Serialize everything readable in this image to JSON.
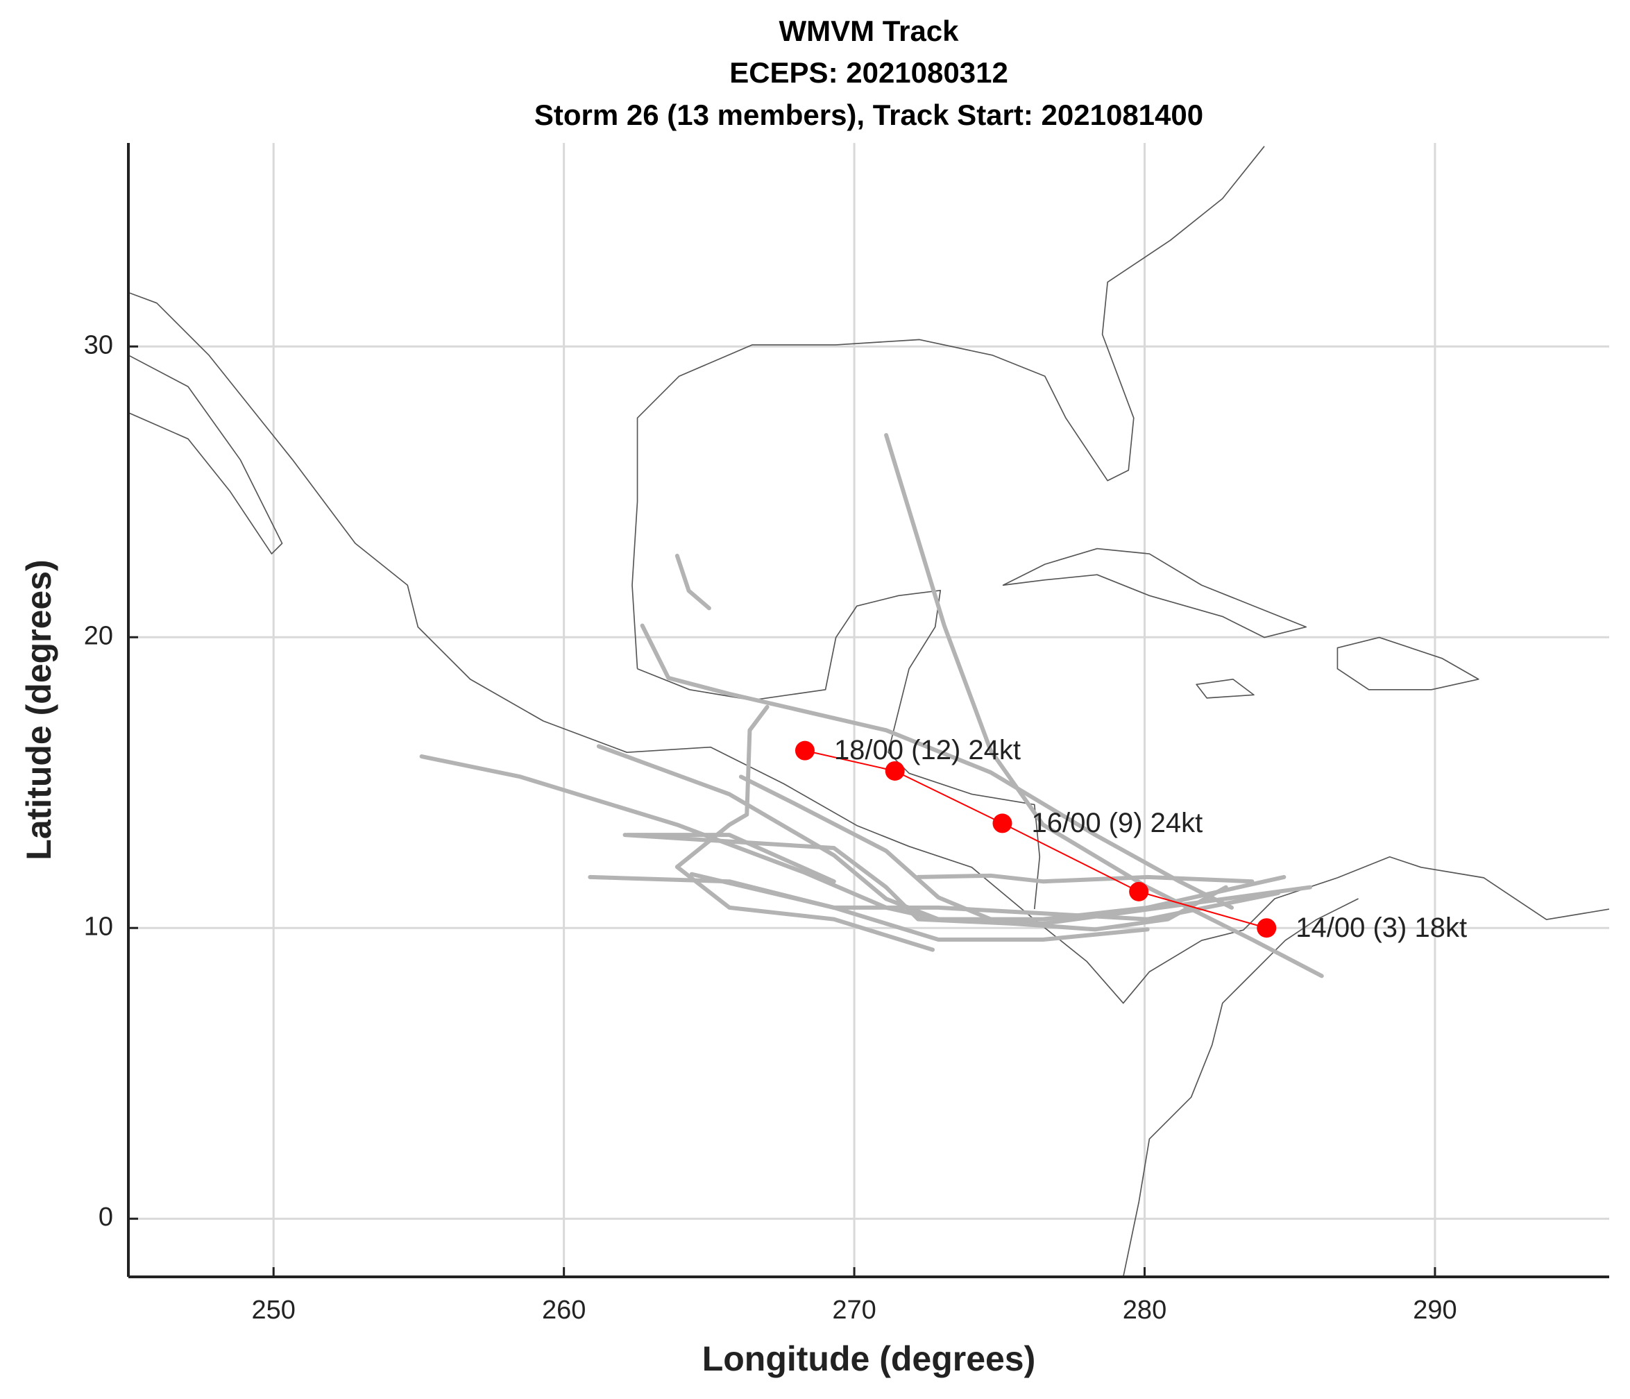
{
  "chart_data": {
    "type": "line",
    "title": [
      "WMVM Track",
      "ECEPS: 2021080312",
      "Storm 26 (13 members), Track Start: 2021081400"
    ],
    "x_label": "Longitude (degrees)",
    "y_label": "Latitude (degrees)",
    "xlim": [
      245,
      296
    ],
    "ylim": [
      -2,
      37
    ],
    "xticks": [
      250,
      260,
      270,
      280,
      290
    ],
    "yticks": [
      0,
      10,
      20,
      30
    ],
    "grid": true,
    "series": [
      {
        "color": "#b3b3b3",
        "x": [
          271.1,
          273.1,
          274.7,
          276.5,
          280.1,
          283.7,
          286.1
        ],
        "values": [
          26.95,
          20.4,
          16.1,
          13.55,
          11.4,
          9.6,
          8.35
        ]
      },
      {
        "color": "#b3b3b3",
        "x": [
          262.7,
          263.6,
          265.7,
          271.1,
          274.7,
          278.3,
          281.2,
          283.0
        ],
        "values": [
          20.4,
          18.6,
          18.05,
          16.8,
          15.35,
          13.2,
          11.6,
          10.7
        ]
      },
      {
        "color": "#b3b3b3",
        "x": [
          261.2,
          265.7,
          269.3,
          271.1,
          272.9,
          276.5,
          280.1,
          284.8
        ],
        "values": [
          16.25,
          14.6,
          12.5,
          11.0,
          10.3,
          10.3,
          10.7,
          11.75
        ]
      },
      {
        "color": "#b3b3b3",
        "x": [
          255.1,
          258.5,
          263.9,
          268.3,
          271.1,
          272.9,
          276.5,
          285.7
        ],
        "values": [
          15.9,
          15.2,
          13.55,
          11.9,
          10.7,
          10.3,
          10.15,
          11.4
        ]
      },
      {
        "color": "#b3b3b3",
        "x": [
          262.1,
          269.3,
          271.1,
          272.2,
          275.5,
          278.3,
          280.8,
          282.8
        ],
        "values": [
          13.2,
          12.75,
          11.4,
          10.3,
          10.15,
          9.95,
          10.3,
          11.4
        ]
      },
      {
        "color": "#b3b3b3",
        "x": [
          260.9,
          265.7,
          269.3,
          272.9,
          276.5,
          280.1,
          284.6
        ],
        "values": [
          11.75,
          11.6,
          10.7,
          10.7,
          10.5,
          10.3,
          11.2
        ]
      },
      {
        "color": "#b3b3b3",
        "x": [
          264.4,
          269.3,
          271.1,
          272.9,
          276.5,
          280.1
        ],
        "values": [
          11.85,
          10.7,
          10.15,
          9.6,
          9.6,
          9.95
        ]
      },
      {
        "color": "#b3b3b3",
        "x": [
          267.0,
          266.4,
          266.3,
          265.7,
          263.9,
          265.7,
          269.3,
          272.7
        ],
        "values": [
          17.6,
          16.8,
          13.9,
          13.55,
          12.1,
          10.7,
          10.3,
          9.25
        ]
      },
      {
        "color": "#b3b3b3",
        "x": [
          262.2,
          265.7,
          269.3
        ],
        "values": [
          13.2,
          13.2,
          11.6
        ]
      },
      {
        "color": "#b3b3b3",
        "x": [
          263.9,
          264.3,
          265.0
        ],
        "values": [
          22.8,
          21.6,
          21.0
        ]
      },
      {
        "color": "#b3b3b3",
        "x": [
          272.2,
          274.7,
          276.5,
          280.1,
          283.7
        ],
        "values": [
          11.75,
          11.8,
          11.6,
          11.75,
          11.6
        ]
      },
      {
        "color": "#b3b3b3",
        "x": [
          266.1,
          267.9,
          271.1,
          272.9,
          274.7
        ],
        "values": [
          15.2,
          14.3,
          12.65,
          11.05,
          10.3
        ]
      },
      {
        "color": "#ff0000",
        "x": [
          284.2,
          279.8,
          275.1,
          271.4,
          268.3
        ],
        "values": [
          10.0,
          11.25,
          13.6,
          15.4,
          16.1
        ],
        "point_labels": [
          "14/00 (3) 18kt",
          null,
          "16/00 (9) 24kt",
          null,
          "18/00 (12) 24kt"
        ]
      }
    ]
  }
}
